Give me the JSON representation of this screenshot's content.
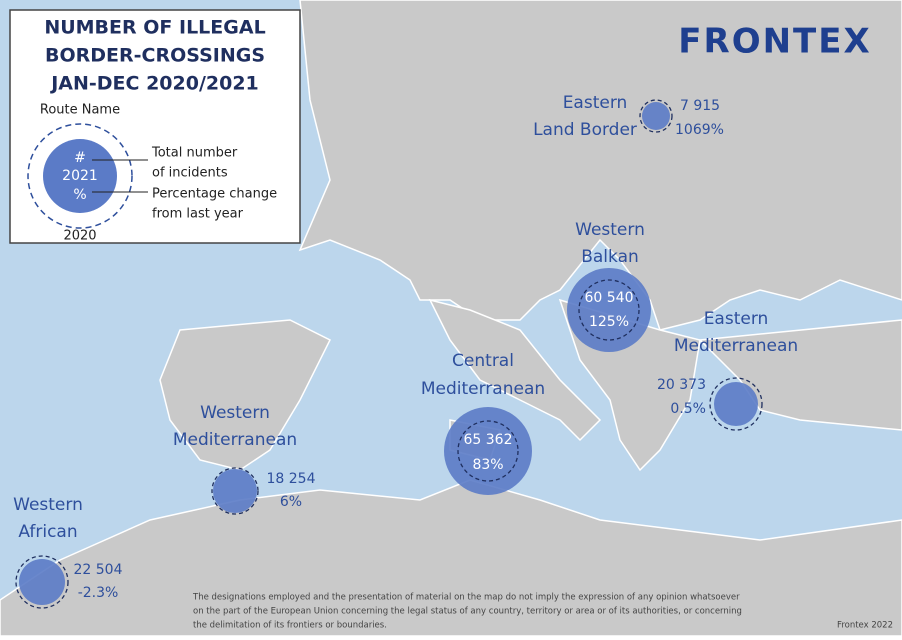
{
  "legend": {
    "title": [
      "NUMBER OF ILLEGAL",
      "BORDER-CROSSINGS",
      "JAN-DEC 2020/2021"
    ],
    "route_name": "Route Name",
    "symbol": "#",
    "year_current": "2021",
    "percent_symbol": "%",
    "total_label": [
      "Total number",
      "of incidents"
    ],
    "change_label": [
      "Percentage change",
      "from last year"
    ],
    "year_previous": "2020"
  },
  "logo": "FRONTEX",
  "routes": [
    {
      "name": [
        "Eastern",
        "Land Border"
      ],
      "total": "7 915",
      "change": "1069%"
    },
    {
      "name": [
        "Western",
        "Balkan"
      ],
      "total": "60 540",
      "change": "125%"
    },
    {
      "name": [
        "Eastern",
        "Mediterranean"
      ],
      "total": "20 373",
      "change": "0.5%"
    },
    {
      "name": [
        "Central",
        "Mediterranean"
      ],
      "total": "65 362",
      "change": "83%"
    },
    {
      "name": [
        "Western",
        "Mediterranean"
      ],
      "total": "18 254",
      "change": "6%"
    },
    {
      "name": [
        "Western",
        "African"
      ],
      "total": "22 504",
      "change": "-2.3%"
    }
  ],
  "disclaimer": [
    "The designations employed and the presentation of material on the map do not imply the expression of any opinion whatsoever",
    "on the part of the European Union concerning the legal status of any country, territory or area or of its authorities, or concerning",
    "the delimitation of its frontiers or boundaries."
  ],
  "credit": "Frontex 2022"
}
